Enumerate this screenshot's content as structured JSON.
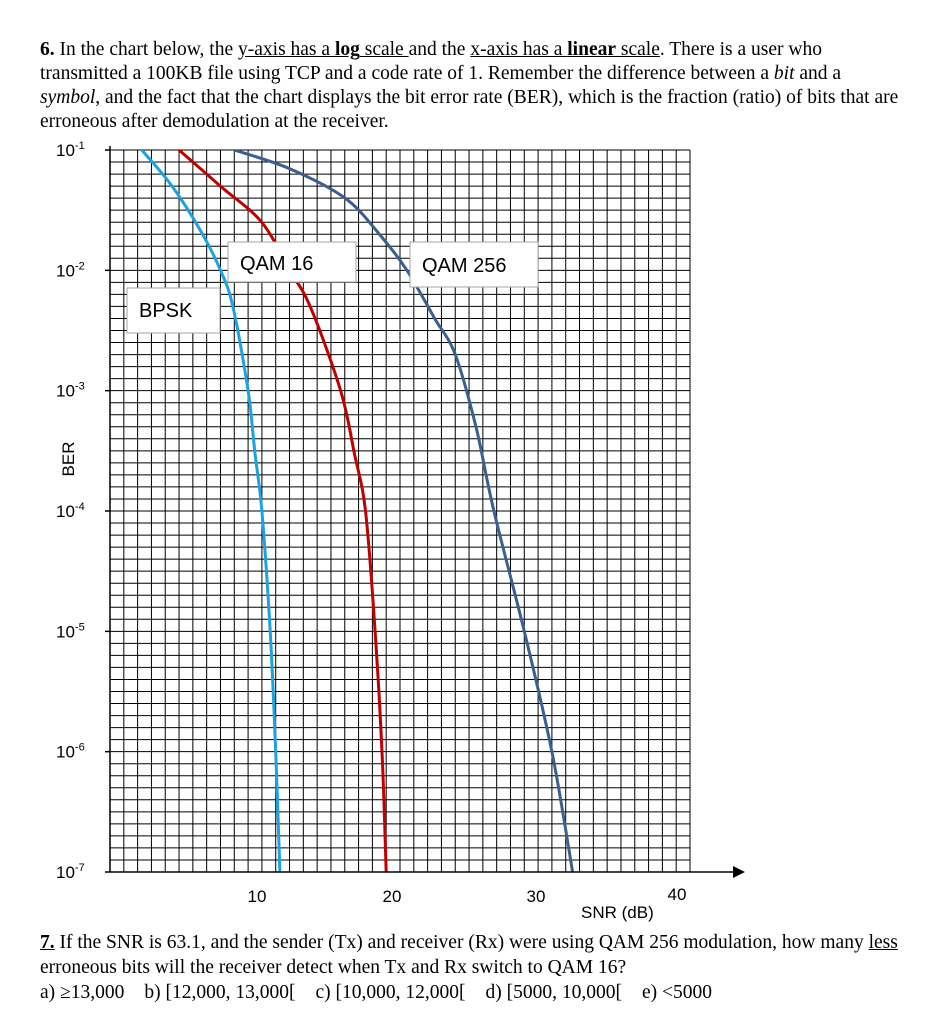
{
  "question6": {
    "number": "6.",
    "s1": " In the chart below, the ",
    "s2": "y-axis has a ",
    "s3": "log",
    "s4": " scale ",
    "s5": "and the ",
    "s6": "x-axis has a ",
    "s7": "linear",
    "s8": " scale",
    "s9": ". There is a user who transmitted a 100KB file using TCP and a code rate of 1. Remember the difference between a ",
    "s10": "bit",
    "s11": " and a ",
    "s12": "symbol",
    "s13": ", and the fact that the chart displays the bit error rate (BER), which is the fraction (ratio) of bits that are erroneous after demodulation at the receiver."
  },
  "question7": {
    "number": "7.",
    "s1": " If the SNR is 63.1, and the sender (Tx) and receiver (Rx) were using QAM 256 modulation, how many ",
    "s2": "less",
    "s3": " erroneous bits will the receiver detect when Tx and Rx switch to QAM 16?",
    "options": [
      "a) ≥13,000",
      "b) [12,000, 13,000[",
      "c) [10,000, 12,000[",
      "d) [5000, 10,000[",
      "e) <5000"
    ]
  },
  "chart_data": {
    "type": "line",
    "xlabel": "SNR (dB)",
    "ylabel": "BER",
    "y_scale": "log",
    "x_scale": "linear",
    "xlim": [
      0,
      42
    ],
    "ylim": [
      1e-07,
      0.1
    ],
    "x_ticks": [
      "10",
      "20",
      "30",
      "40"
    ],
    "y_ticks": [
      {
        "base": "10",
        "exp": "-1"
      },
      {
        "base": "10",
        "exp": "-2"
      },
      {
        "base": "10",
        "exp": "-3"
      },
      {
        "base": "10",
        "exp": "-4"
      },
      {
        "base": "10",
        "exp": "-5"
      },
      {
        "base": "10",
        "exp": "-6"
      },
      {
        "base": "10",
        "exp": "-7"
      }
    ],
    "grid": true,
    "series": [
      {
        "name": "BPSK",
        "color": "#1aa3e0",
        "points": [
          [
            2.3,
            0.1
          ],
          [
            4.5,
            0.05
          ],
          [
            6.7,
            0.02
          ],
          [
            8.0,
            0.01
          ],
          [
            8.9,
            0.005
          ],
          [
            10.0,
            0.001
          ],
          [
            10.5,
            0.0003
          ],
          [
            11.0,
            0.0001
          ],
          [
            11.6,
            1e-05
          ],
          [
            12.0,
            1e-06
          ],
          [
            12.3,
            1e-07
          ]
        ]
      },
      {
        "name": "QAM 16",
        "color": "#c00000",
        "points": [
          [
            5.0,
            0.1
          ],
          [
            8.0,
            0.05
          ],
          [
            11.0,
            0.025
          ],
          [
            13.0,
            0.01
          ],
          [
            14.5,
            0.005
          ],
          [
            16.7,
            0.001
          ],
          [
            17.7,
            0.0003
          ],
          [
            18.5,
            0.0001
          ],
          [
            19.2,
            1e-05
          ],
          [
            19.7,
            1e-06
          ],
          [
            20.0,
            1e-07
          ]
        ]
      },
      {
        "name": "QAM 256",
        "color": "#3b5f8f",
        "points": [
          [
            9.0,
            0.1
          ],
          [
            13.0,
            0.07
          ],
          [
            17.0,
            0.04
          ],
          [
            19.5,
            0.02
          ],
          [
            21.5,
            0.01
          ],
          [
            23.5,
            0.004
          ],
          [
            25.0,
            0.002
          ],
          [
            26.5,
            0.0005
          ],
          [
            27.8,
            0.0001
          ],
          [
            30.0,
            1e-05
          ],
          [
            32.0,
            1e-06
          ],
          [
            33.5,
            1e-07
          ]
        ]
      }
    ]
  }
}
